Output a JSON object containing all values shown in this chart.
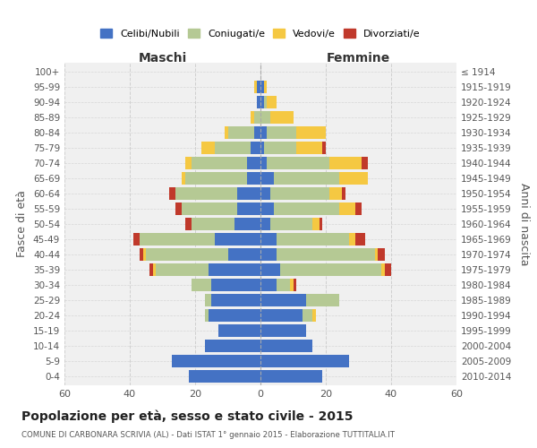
{
  "age_groups": [
    "100+",
    "95-99",
    "90-94",
    "85-89",
    "80-84",
    "75-79",
    "70-74",
    "65-69",
    "60-64",
    "55-59",
    "50-54",
    "45-49",
    "40-44",
    "35-39",
    "30-34",
    "25-29",
    "20-24",
    "15-19",
    "10-14",
    "5-9",
    "0-4"
  ],
  "birth_years": [
    "≤ 1914",
    "1915-1919",
    "1920-1924",
    "1925-1929",
    "1930-1934",
    "1935-1939",
    "1940-1944",
    "1945-1949",
    "1950-1954",
    "1955-1959",
    "1960-1964",
    "1965-1969",
    "1970-1974",
    "1975-1979",
    "1980-1984",
    "1985-1989",
    "1990-1994",
    "1995-1999",
    "2000-2004",
    "2005-2009",
    "2010-2014"
  ],
  "colors": {
    "celibe": "#4472c4",
    "coniugato": "#b5c994",
    "vedovo": "#f5c842",
    "divorziato": "#c0392b"
  },
  "maschi": {
    "celibe": [
      0,
      1,
      1,
      0,
      2,
      3,
      4,
      4,
      7,
      7,
      8,
      14,
      10,
      16,
      15,
      15,
      16,
      13,
      17,
      27,
      22
    ],
    "coniugato": [
      0,
      0,
      0,
      2,
      8,
      11,
      17,
      19,
      19,
      17,
      13,
      23,
      25,
      16,
      6,
      2,
      1,
      0,
      0,
      0,
      0
    ],
    "vedovo": [
      0,
      1,
      0,
      1,
      1,
      4,
      2,
      1,
      0,
      0,
      0,
      0,
      1,
      1,
      0,
      0,
      0,
      0,
      0,
      0,
      0
    ],
    "divorziato": [
      0,
      0,
      0,
      0,
      0,
      0,
      0,
      0,
      2,
      2,
      2,
      2,
      1,
      1,
      0,
      0,
      0,
      0,
      0,
      0,
      0
    ]
  },
  "femmine": {
    "nubile": [
      0,
      1,
      1,
      0,
      2,
      1,
      2,
      4,
      3,
      4,
      3,
      5,
      5,
      6,
      5,
      14,
      13,
      14,
      16,
      27,
      19
    ],
    "coniugata": [
      0,
      0,
      1,
      3,
      9,
      10,
      19,
      20,
      18,
      20,
      13,
      22,
      30,
      31,
      4,
      10,
      3,
      0,
      0,
      0,
      0
    ],
    "vedova": [
      0,
      1,
      3,
      7,
      9,
      8,
      10,
      9,
      4,
      5,
      2,
      2,
      1,
      1,
      1,
      0,
      1,
      0,
      0,
      0,
      0
    ],
    "divorziata": [
      0,
      0,
      0,
      0,
      0,
      1,
      2,
      0,
      1,
      2,
      1,
      3,
      2,
      2,
      1,
      0,
      0,
      0,
      0,
      0,
      0
    ]
  },
  "xlim": 60,
  "title": "Popolazione per età, sesso e stato civile - 2015",
  "subtitle": "COMUNE DI CARBONARA SCRIVIA (AL) - Dati ISTAT 1° gennaio 2015 - Elaborazione TUTTITALIA.IT",
  "ylabel_left": "Fasce di età",
  "ylabel_right": "Anni di nascita",
  "xlabel_maschi": "Maschi",
  "xlabel_femmine": "Femmine",
  "bg_color": "#ffffff",
  "grid_color": "#cccccc",
  "legend_labels": [
    "Celibi/Nubili",
    "Coniugati/e",
    "Vedovi/e",
    "Divorziati/e"
  ]
}
